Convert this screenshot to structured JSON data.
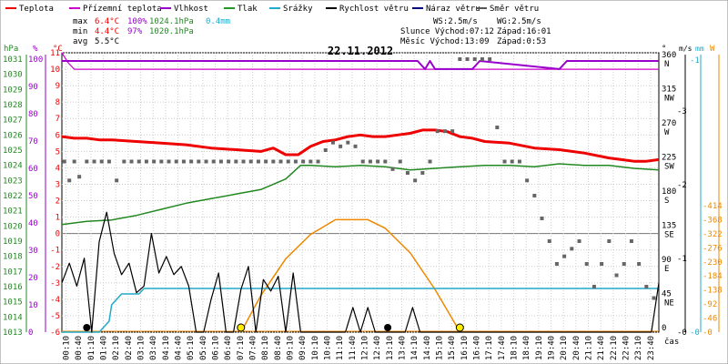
{
  "legend": [
    {
      "label": "Teplota",
      "color": "#ee0000"
    },
    {
      "label": "Přízemní teplota",
      "color": "#cc00cc"
    },
    {
      "label": "Vlhkost",
      "color": "#9900cc"
    },
    {
      "label": "Tlak",
      "color": "#229922"
    },
    {
      "label": "Srážky",
      "color": "#22aacc"
    },
    {
      "label": "Rychlost větru",
      "color": "#000000"
    },
    {
      "label": "Náraz větru",
      "color": "#000080"
    },
    {
      "label": "Směr větru",
      "color": "#555555"
    }
  ],
  "stats": {
    "max_label": "max",
    "max_temp": "6.4°C",
    "max_hum": "100%",
    "max_press": "1024.1hPa",
    "max_rain": "0.4mm",
    "min_label": "min",
    "min_temp": "4.4°C",
    "min_hum": "97%",
    "min_press": "1020.1hPa",
    "avg_label": "avg",
    "avg_temp": "5.5°C",
    "ws": "WS:2.5m/s",
    "wg": "WG:2.5m/s",
    "sun": "Slunce Východ:07:12",
    "sun_set": "Západ:16:01",
    "moon": "Měsíc  Východ:13:09",
    "moon_set": "Západ:0:53"
  },
  "colors": {
    "temp": "#ee0000",
    "ground": "#cc00cc",
    "hum": "#9900cc",
    "press": "#228822",
    "rain": "#22aacc",
    "wind": "#000000",
    "dir": "#666666",
    "sun": "#ee8800",
    "grid": "#cccccc"
  },
  "chart_data": {
    "type": "line",
    "title": "22.11.2012",
    "x_label": "čas",
    "x_ticks": [
      "00:10",
      "00:40",
      "01:10",
      "01:40",
      "02:10",
      "02:40",
      "03:10",
      "03:40",
      "04:10",
      "04:40",
      "05:10",
      "05:40",
      "06:10",
      "06:40",
      "07:10",
      "07:40",
      "08:10",
      "08:40",
      "09:10",
      "09:40",
      "10:10",
      "10:40",
      "11:10",
      "11:40",
      "12:10",
      "12:40",
      "13:10",
      "13:40",
      "14:10",
      "14:40",
      "15:10",
      "15:40",
      "16:10",
      "16:40",
      "17:10",
      "17:40",
      "18:10",
      "18:40",
      "19:10",
      "19:40",
      "20:10",
      "20:40",
      "21:10",
      "21:40",
      "22:10",
      "22:40",
      "23:10",
      "23:40"
    ],
    "axes": {
      "hpa": {
        "unit": "hPa",
        "ticks": [
          "1013",
          "1014",
          "1015",
          "1016",
          "1017",
          "1018",
          "1019",
          "1020",
          "1021",
          "1022",
          "1023",
          "1024",
          "1025",
          "1026",
          "1027",
          "1028",
          "1029",
          "1030",
          "1031"
        ]
      },
      "pct": {
        "unit": "%",
        "ticks": [
          "0",
          "10",
          "20",
          "30",
          "40",
          "50",
          "60",
          "70",
          "80",
          "90",
          "100"
        ]
      },
      "temp": {
        "unit": "°C",
        "ticks": [
          "-6",
          "-5",
          "-4",
          "-3",
          "-2",
          "-1",
          "0",
          "1",
          "2",
          "3",
          "4",
          "5",
          "6",
          "7",
          "8",
          "9",
          "10",
          "11"
        ]
      },
      "dir": {
        "unit": "°",
        "ticks": [
          "0",
          "45 NE",
          "90 E",
          "135 SE",
          "180 S",
          "225 SW",
          "270 W",
          "315 NW",
          "360 N"
        ]
      },
      "wind": {
        "unit": "m/s",
        "ticks": [
          "0",
          "1",
          "2",
          "3",
          "4"
        ]
      },
      "rain": {
        "unit": "mm",
        "ticks": [
          "0",
          "1"
        ]
      },
      "sol": {
        "unit": "W",
        "ticks": [
          "0",
          "46",
          "92",
          "138",
          "184",
          "230",
          "276",
          "322",
          "368",
          "414"
        ]
      }
    },
    "series": [
      {
        "name": "Teplota",
        "axis": "temp",
        "x": [
          0,
          0.5,
          1,
          1.5,
          2,
          3,
          4,
          5,
          6,
          7,
          8,
          8.5,
          9,
          9.5,
          10,
          10.5,
          11,
          11.5,
          12,
          12.5,
          13,
          13.5,
          14,
          14.5,
          15,
          15.5,
          16,
          16.5,
          17,
          18,
          19,
          20,
          21,
          22,
          22.5,
          23,
          23.5,
          24
        ],
        "y": [
          5.9,
          5.8,
          5.8,
          5.7,
          5.7,
          5.6,
          5.5,
          5.4,
          5.2,
          5.1,
          5.0,
          5.2,
          4.8,
          4.8,
          5.3,
          5.6,
          5.7,
          5.9,
          6.0,
          5.9,
          5.9,
          6.0,
          6.1,
          6.3,
          6.3,
          6.2,
          5.9,
          5.8,
          5.6,
          5.5,
          5.2,
          5.1,
          4.9,
          4.6,
          4.5,
          4.4,
          4.4,
          4.5
        ]
      },
      {
        "name": "Přízemní teplota",
        "axis": "temp",
        "x": [
          0,
          0.25,
          0.5,
          24
        ],
        "y": [
          11,
          10.4,
          10.0,
          10.0
        ]
      },
      {
        "name": "Vlhkost",
        "axis": "pct",
        "x": [
          0,
          14.3,
          14.6,
          14.8,
          15.0,
          15.6,
          16.0,
          16.5,
          16.8,
          20.0,
          20.3,
          24
        ],
        "y": [
          100,
          100,
          97,
          100,
          97,
          97,
          97,
          97,
          100,
          97,
          100,
          100
        ]
      },
      {
        "name": "Tlak",
        "axis": "hpa",
        "x": [
          0,
          1,
          2,
          3,
          4,
          5,
          6,
          7,
          8,
          9,
          9.6,
          10,
          11,
          12,
          13,
          14,
          15,
          16,
          17,
          18,
          19,
          20,
          21,
          22,
          23,
          24
        ],
        "y": [
          1020.1,
          1020.3,
          1020.4,
          1020.7,
          1021.1,
          1021.5,
          1021.8,
          1022.1,
          1022.4,
          1023.1,
          1024.0,
          1024.0,
          1023.9,
          1024.0,
          1023.9,
          1023.7,
          1023.8,
          1023.9,
          1024.0,
          1024.0,
          1023.9,
          1024.1,
          1024.0,
          1024.0,
          1023.8,
          1023.7
        ]
      },
      {
        "name": "Srážky",
        "axis": "rain",
        "x": [
          0,
          1.5,
          1.9,
          2.0,
          2.4,
          2.8,
          3.1,
          3.3,
          24
        ],
        "y": [
          0,
          0,
          0.1,
          0.25,
          0.35,
          0.35,
          0.35,
          0.4,
          0.4
        ]
      },
      {
        "name": "Rychlost větru",
        "axis": "temp",
        "x": [
          0,
          0.3,
          0.6,
          0.9,
          1.2,
          1.5,
          1.8,
          2.1,
          2.4,
          2.7,
          3.0,
          3.3,
          3.6,
          3.9,
          4.2,
          4.5,
          4.8,
          5.1,
          5.4,
          5.7,
          6.0,
          6.3,
          6.6,
          6.9,
          7.2,
          7.5,
          7.8,
          8.1,
          8.4,
          8.7,
          9.0,
          9.3,
          9.6,
          9.9,
          10.2,
          10.5,
          10.8,
          11.1,
          11.4,
          11.7,
          12.0,
          12.3,
          12.6,
          12.9,
          13.2,
          13.5,
          13.8,
          14.1,
          14.4,
          14.7,
          15.0,
          15.3,
          15.6,
          15.9,
          16.2,
          16.5,
          16.8,
          17.1,
          17.4,
          17.7,
          18.0,
          18.3,
          18.6,
          18.9,
          19.2,
          19.5,
          19.8,
          20.1,
          20.4,
          20.7,
          21.0,
          21.3,
          21.6,
          21.9,
          22.2,
          22.5,
          22.8,
          23.1,
          23.4,
          23.7,
          24
        ],
        "y": [
          -3.0,
          -1.8,
          -3.2,
          -1.5,
          -6.0,
          -0.5,
          1.3,
          -1.2,
          -2.5,
          -1.8,
          -3.6,
          -3.2,
          0.0,
          -2.4,
          -1.4,
          -2.5,
          -2.0,
          -3.2,
          -6.0,
          -6.0,
          -4.0,
          -2.4,
          -6.0,
          -6.0,
          -3.4,
          -2.0,
          -6.0,
          -2.8,
          -3.5,
          -2.6,
          -6.0,
          -2.4,
          -6.0,
          -6.0,
          -6.0,
          -6.0,
          -6.0,
          -6.0,
          -6.0,
          -4.5,
          -6.0,
          -4.5,
          -6.0,
          -6.0,
          -6.0,
          -6.0,
          -6.0,
          -4.5,
          -6.0,
          -6.0,
          -6.0,
          -6.0,
          -6.0,
          -6.0,
          -6.0,
          -6.0,
          -6.0,
          -6.0,
          -6.0,
          -6.0,
          -6.0,
          -6.0,
          -6.0,
          -6.0,
          -6.0,
          -6.0,
          -6.0,
          -6.0,
          -6.0,
          -6.0,
          -6.0,
          -6.0,
          -6.0,
          -6.0,
          -6.0,
          -6.0,
          -6.0,
          -6.0,
          -6.0,
          -6.0,
          -3.0
        ]
      },
      {
        "name": "Směr větru",
        "axis": "dir",
        "type": "scatter",
        "x": [
          0.1,
          0.3,
          0.5,
          0.7,
          1.0,
          1.3,
          1.6,
          1.9,
          2.2,
          2.5,
          2.8,
          3.1,
          3.4,
          3.7,
          4.0,
          4.3,
          4.6,
          4.9,
          5.2,
          5.5,
          5.8,
          6.1,
          6.4,
          6.7,
          7.0,
          7.3,
          7.6,
          7.9,
          8.2,
          8.5,
          8.8,
          9.1,
          9.4,
          9.7,
          10.0,
          10.3,
          10.6,
          10.9,
          11.2,
          11.5,
          11.8,
          12.1,
          12.4,
          12.7,
          13.0,
          13.3,
          13.6,
          13.9,
          14.2,
          14.5,
          14.8,
          15.1,
          15.4,
          15.7,
          16.0,
          16.3,
          16.6,
          16.9,
          17.2,
          17.5,
          17.8,
          18.1,
          18.4,
          18.7,
          19.0,
          19.3,
          19.6,
          19.9,
          20.2,
          20.5,
          20.8,
          21.1,
          21.4,
          21.7,
          22.0,
          22.3,
          22.6,
          22.9,
          23.2,
          23.5,
          23.8
        ],
        "y": [
          225,
          200,
          225,
          205,
          225,
          225,
          225,
          225,
          200,
          225,
          225,
          225,
          225,
          225,
          225,
          225,
          225,
          225,
          225,
          225,
          225,
          225,
          225,
          225,
          225,
          225,
          225,
          225,
          225,
          225,
          225,
          225,
          225,
          225,
          225,
          225,
          240,
          250,
          245,
          250,
          245,
          225,
          225,
          225,
          225,
          215,
          225,
          210,
          200,
          210,
          225,
          265,
          265,
          265,
          360,
          360,
          360,
          360,
          360,
          270,
          225,
          225,
          225,
          200,
          180,
          150,
          120,
          90,
          100,
          110,
          120,
          90,
          60,
          90,
          120,
          75,
          90,
          120,
          90,
          60,
          45
        ]
      }
    ],
    "solar": {
      "name": "Sluneční záření",
      "axis": "sol",
      "x": [
        7.2,
        8,
        9,
        10,
        11,
        11.7,
        12.3,
        13,
        14,
        15,
        16.01
      ],
      "y": [
        0,
        120,
        240,
        320,
        368,
        368,
        368,
        340,
        260,
        140,
        0
      ]
    },
    "markers": [
      {
        "kind": "dot-black",
        "x": 1.0
      },
      {
        "kind": "sun",
        "x": 7.2
      },
      {
        "kind": "dot-black",
        "x": 13.1
      },
      {
        "kind": "sun",
        "x": 16.0
      }
    ],
    "xlim": [
      0,
      24
    ],
    "grid": true
  }
}
